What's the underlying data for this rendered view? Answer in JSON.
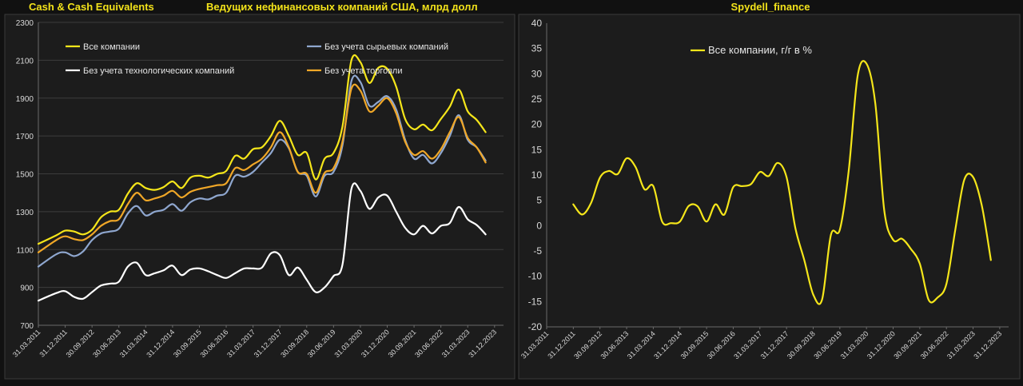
{
  "header": {
    "left_title_1": "Cash & Cash Equivalents",
    "left_title_2": "Ведущих нефинансовых компаний США, млрд долл",
    "right_title": "Spydell_finance"
  },
  "colors": {
    "background": "#111111",
    "panel": "#1c1c1c",
    "grid": "#3c3c3c",
    "title_yellow": "#f2e21a",
    "all_companies": "#f5e61a",
    "ex_commodity": "#8fa7cf",
    "ex_tech": "#ffffff",
    "ex_trade": "#f0a727",
    "axis_text": "#d9d9d9"
  },
  "chart_data": [
    {
      "type": "line",
      "title": "Cash & Cash Equivalents",
      "subtitle": "Ведущих нефинансовых компаний США, млрд долл",
      "xlabel": "",
      "ylabel": "",
      "ylim": [
        700,
        2300
      ],
      "yticks": [
        700,
        900,
        1100,
        1300,
        1500,
        1700,
        1900,
        2100,
        2300
      ],
      "xlim": [
        0,
        52
      ],
      "xtick_labels": [
        "31.03.2011",
        "31.12.2011",
        "30.09.2012",
        "30.06.2013",
        "31.03.2014",
        "31.12.2014",
        "30.09.2015",
        "30.06.2016",
        "31.03.2017",
        "31.12.2017",
        "30.09.2018",
        "30.06.2019",
        "31.03.2020",
        "31.12.2020",
        "30.09.2021",
        "30.06.2022",
        "31.03.2023",
        "31.12.2023"
      ],
      "grid": true,
      "legend_position": "top",
      "series": [
        {
          "name": "Все компании",
          "color": "#f5e61a",
          "points": [
            [
              0,
              1130
            ],
            [
              2,
              1175
            ],
            [
              3,
              1200
            ],
            [
              4,
              1195
            ],
            [
              5,
              1180
            ],
            [
              6,
              1205
            ],
            [
              7,
              1270
            ],
            [
              8,
              1300
            ],
            [
              9,
              1310
            ],
            [
              10,
              1395
            ],
            [
              11,
              1450
            ],
            [
              12,
              1425
            ],
            [
              13,
              1415
            ],
            [
              14,
              1430
            ],
            [
              15,
              1460
            ],
            [
              16,
              1425
            ],
            [
              17,
              1480
            ],
            [
              18,
              1490
            ],
            [
              19,
              1480
            ],
            [
              20,
              1500
            ],
            [
              21,
              1515
            ],
            [
              22,
              1595
            ],
            [
              23,
              1580
            ],
            [
              24,
              1630
            ],
            [
              25,
              1640
            ],
            [
              26,
              1700
            ],
            [
              27,
              1780
            ],
            [
              28,
              1700
            ],
            [
              29,
              1600
            ],
            [
              30,
              1610
            ],
            [
              31,
              1470
            ],
            [
              32,
              1580
            ],
            [
              33,
              1610
            ],
            [
              34,
              1750
            ],
            [
              35,
              2100
            ],
            [
              36,
              2090
            ],
            [
              37,
              1980
            ],
            [
              38,
              2060
            ],
            [
              39,
              2055
            ],
            [
              40,
              1960
            ],
            [
              41,
              1790
            ],
            [
              42,
              1735
            ],
            [
              43,
              1760
            ],
            [
              44,
              1730
            ],
            [
              45,
              1790
            ],
            [
              46,
              1855
            ],
            [
              47,
              1945
            ],
            [
              48,
              1830
            ],
            [
              49,
              1785
            ],
            [
              50,
              1720
            ]
          ]
        },
        {
          "name": "Без учета сырьевых компаний",
          "color": "#8fa7cf",
          "points": [
            [
              0,
              1010
            ],
            [
              2,
              1075
            ],
            [
              3,
              1085
            ],
            [
              4,
              1065
            ],
            [
              5,
              1090
            ],
            [
              6,
              1150
            ],
            [
              7,
              1185
            ],
            [
              8,
              1195
            ],
            [
              9,
              1210
            ],
            [
              10,
              1290
            ],
            [
              11,
              1330
            ],
            [
              12,
              1280
            ],
            [
              13,
              1300
            ],
            [
              14,
              1310
            ],
            [
              15,
              1340
            ],
            [
              16,
              1305
            ],
            [
              17,
              1350
            ],
            [
              18,
              1370
            ],
            [
              19,
              1365
            ],
            [
              20,
              1385
            ],
            [
              21,
              1400
            ],
            [
              22,
              1490
            ],
            [
              23,
              1485
            ],
            [
              24,
              1510
            ],
            [
              25,
              1560
            ],
            [
              26,
              1610
            ],
            [
              27,
              1680
            ],
            [
              28,
              1635
            ],
            [
              29,
              1510
            ],
            [
              30,
              1490
            ],
            [
              31,
              1380
            ],
            [
              32,
              1490
            ],
            [
              33,
              1510
            ],
            [
              34,
              1650
            ],
            [
              35,
              1990
            ],
            [
              36,
              1985
            ],
            [
              37,
              1860
            ],
            [
              38,
              1880
            ],
            [
              39,
              1910
            ],
            [
              40,
              1840
            ],
            [
              41,
              1680
            ],
            [
              42,
              1580
            ],
            [
              43,
              1600
            ],
            [
              44,
              1555
            ],
            [
              45,
              1610
            ],
            [
              46,
              1700
            ],
            [
              47,
              1810
            ],
            [
              48,
              1680
            ],
            [
              49,
              1640
            ],
            [
              50,
              1570
            ]
          ]
        },
        {
          "name": "Без учета технологических компаний",
          "color": "#ffffff",
          "points": [
            [
              0,
              830
            ],
            [
              2,
              870
            ],
            [
              3,
              880
            ],
            [
              4,
              850
            ],
            [
              5,
              840
            ],
            [
              6,
              875
            ],
            [
              7,
              910
            ],
            [
              8,
              920
            ],
            [
              9,
              930
            ],
            [
              10,
              1010
            ],
            [
              11,
              1030
            ],
            [
              12,
              965
            ],
            [
              13,
              975
            ],
            [
              14,
              990
            ],
            [
              15,
              1015
            ],
            [
              16,
              965
            ],
            [
              17,
              995
            ],
            [
              18,
              1000
            ],
            [
              19,
              985
            ],
            [
              20,
              965
            ],
            [
              21,
              950
            ],
            [
              22,
              975
            ],
            [
              23,
              1000
            ],
            [
              24,
              1000
            ],
            [
              25,
              1005
            ],
            [
              26,
              1080
            ],
            [
              27,
              1070
            ],
            [
              28,
              965
            ],
            [
              29,
              1005
            ],
            [
              30,
              940
            ],
            [
              31,
              875
            ],
            [
              32,
              900
            ],
            [
              33,
              960
            ],
            [
              34,
              1020
            ],
            [
              35,
              1420
            ],
            [
              36,
              1410
            ],
            [
              37,
              1315
            ],
            [
              38,
              1375
            ],
            [
              39,
              1385
            ],
            [
              40,
              1300
            ],
            [
              41,
              1215
            ],
            [
              42,
              1180
            ],
            [
              43,
              1225
            ],
            [
              44,
              1185
            ],
            [
              45,
              1225
            ],
            [
              46,
              1240
            ],
            [
              47,
              1325
            ],
            [
              48,
              1260
            ],
            [
              49,
              1230
            ],
            [
              50,
              1180
            ]
          ]
        },
        {
          "name": "Без учета торговли",
          "color": "#f0a727",
          "points": [
            [
              0,
              1085
            ],
            [
              2,
              1150
            ],
            [
              3,
              1170
            ],
            [
              4,
              1155
            ],
            [
              5,
              1150
            ],
            [
              6,
              1180
            ],
            [
              7,
              1225
            ],
            [
              8,
              1250
            ],
            [
              9,
              1260
            ],
            [
              10,
              1340
            ],
            [
              11,
              1400
            ],
            [
              12,
              1360
            ],
            [
              13,
              1370
            ],
            [
              14,
              1385
            ],
            [
              15,
              1410
            ],
            [
              16,
              1375
            ],
            [
              17,
              1405
            ],
            [
              18,
              1420
            ],
            [
              19,
              1430
            ],
            [
              20,
              1440
            ],
            [
              21,
              1450
            ],
            [
              22,
              1530
            ],
            [
              23,
              1520
            ],
            [
              24,
              1550
            ],
            [
              25,
              1580
            ],
            [
              26,
              1640
            ],
            [
              27,
              1720
            ],
            [
              28,
              1640
            ],
            [
              29,
              1510
            ],
            [
              30,
              1500
            ],
            [
              31,
              1400
            ],
            [
              32,
              1505
            ],
            [
              33,
              1530
            ],
            [
              34,
              1670
            ],
            [
              35,
              1950
            ],
            [
              36,
              1940
            ],
            [
              37,
              1830
            ],
            [
              38,
              1860
            ],
            [
              39,
              1900
            ],
            [
              40,
              1820
            ],
            [
              41,
              1670
            ],
            [
              42,
              1600
            ],
            [
              43,
              1620
            ],
            [
              44,
              1580
            ],
            [
              45,
              1630
            ],
            [
              46,
              1720
            ],
            [
              47,
              1800
            ],
            [
              48,
              1690
            ],
            [
              49,
              1640
            ],
            [
              50,
              1560
            ]
          ]
        }
      ]
    },
    {
      "type": "line",
      "title": "Spydell_finance",
      "xlabel": "",
      "ylabel": "",
      "ylim": [
        -20,
        40
      ],
      "yticks": [
        -20,
        -15,
        -10,
        -5,
        0,
        5,
        10,
        15,
        20,
        25,
        30,
        35,
        40
      ],
      "xlim": [
        0,
        52
      ],
      "xtick_labels": [
        "31.03.2011",
        "31.12.2011",
        "30.09.2012",
        "30.06.2013",
        "31.03.2014",
        "31.12.2014",
        "30.09.2015",
        "30.06.2016",
        "31.03.2017",
        "31.12.2017",
        "30.09.2018",
        "30.06.2019",
        "31.03.2020",
        "31.12.2020",
        "30.09.2021",
        "30.06.2022",
        "31.03.2023",
        "31.12.2023"
      ],
      "grid": false,
      "legend_position": "top-left",
      "series": [
        {
          "name": "Все компании, г/г в %",
          "color": "#f5e61a",
          "points": [
            [
              3,
              4.2
            ],
            [
              4,
              2.2
            ],
            [
              5,
              4.5
            ],
            [
              6,
              9.5
            ],
            [
              7,
              10.8
            ],
            [
              8,
              10.2
            ],
            [
              9,
              13.3
            ],
            [
              10,
              11.6
            ],
            [
              11,
              7.2
            ],
            [
              12,
              7.8
            ],
            [
              13,
              0.8
            ],
            [
              14,
              0.5
            ],
            [
              15,
              0.8
            ],
            [
              16,
              3.9
            ],
            [
              17,
              3.8
            ],
            [
              18,
              0.8
            ],
            [
              19,
              4.2
            ],
            [
              20,
              2.2
            ],
            [
              21,
              7.6
            ],
            [
              22,
              7.8
            ],
            [
              23,
              8.2
            ],
            [
              24,
              10.6
            ],
            [
              25,
              9.8
            ],
            [
              26,
              12.4
            ],
            [
              27,
              9.6
            ],
            [
              28,
              -0.5
            ],
            [
              29,
              -6.8
            ],
            [
              30,
              -13.6
            ],
            [
              31,
              -14.6
            ],
            [
              32,
              -1.8
            ],
            [
              33,
              -0.8
            ],
            [
              34,
              10.8
            ],
            [
              35,
              29.5
            ],
            [
              36,
              32.0
            ],
            [
              37,
              24.0
            ],
            [
              38,
              3.0
            ],
            [
              39,
              -2.8
            ],
            [
              40,
              -2.6
            ],
            [
              41,
              -4.6
            ],
            [
              42,
              -7.5
            ],
            [
              43,
              -14.7
            ],
            [
              44,
              -14.2
            ],
            [
              45,
              -11.5
            ],
            [
              46,
              -0.8
            ],
            [
              47,
              9.0
            ],
            [
              48,
              9.6
            ],
            [
              49,
              3.8
            ],
            [
              50,
              -6.8
            ]
          ]
        }
      ]
    }
  ]
}
